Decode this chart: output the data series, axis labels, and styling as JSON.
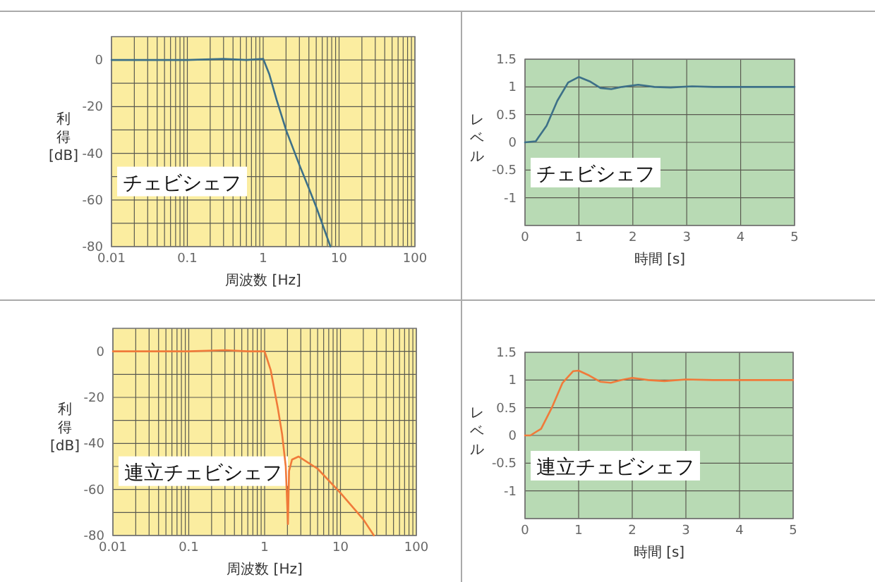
{
  "chart_data": [
    {
      "type": "line",
      "xlabel": "周波数 [Hz]",
      "ylabel": "利得 [dB]",
      "annotations": [
        "チェビシェフ"
      ],
      "log": "x",
      "grid": true,
      "color": "#3d7088",
      "x": [
        0.01,
        0.1,
        0.3,
        0.6,
        1,
        1.2,
        1.5,
        2,
        3,
        4,
        5,
        7.7
      ],
      "values": [
        0,
        0,
        0.5,
        0,
        0.5,
        -6,
        -17,
        -30,
        -45,
        -55,
        -63,
        -80
      ],
      "xlim": [
        0.01,
        100
      ],
      "ylim": [
        -80,
        10
      ],
      "xticks": [
        {
          "value": 0.01,
          "label": "0.01"
        },
        {
          "value": 0.02,
          "label": null
        },
        {
          "value": 0.03,
          "label": null
        },
        {
          "value": 0.04,
          "label": null
        },
        {
          "value": 0.05,
          "label": null
        },
        {
          "value": 0.06,
          "label": null
        },
        {
          "value": 0.07,
          "label": null
        },
        {
          "value": 0.08,
          "label": null
        },
        {
          "value": 0.09,
          "label": null
        },
        {
          "value": 0.1,
          "label": "0.1"
        },
        {
          "value": 0.2,
          "label": null
        },
        {
          "value": 0.3,
          "label": null
        },
        {
          "value": 0.4,
          "label": null
        },
        {
          "value": 0.5,
          "label": null
        },
        {
          "value": 0.6,
          "label": null
        },
        {
          "value": 0.7,
          "label": null
        },
        {
          "value": 0.8,
          "label": null
        },
        {
          "value": 0.9,
          "label": null
        },
        1,
        {
          "value": 2,
          "label": null
        },
        {
          "value": 3,
          "label": null
        },
        {
          "value": 4,
          "label": null
        },
        {
          "value": 5,
          "label": null
        },
        {
          "value": 6,
          "label": null
        },
        {
          "value": 7,
          "label": null
        },
        {
          "value": 8,
          "label": null
        },
        {
          "value": 9,
          "label": null
        },
        10,
        {
          "value": 20,
          "label": null
        },
        {
          "value": 30,
          "label": null
        },
        {
          "value": 40,
          "label": null
        },
        {
          "value": 50,
          "label": null
        },
        {
          "value": 60,
          "label": null
        },
        {
          "value": 70,
          "label": null
        },
        {
          "value": 80,
          "label": null
        },
        {
          "value": 90,
          "label": null
        },
        100
      ],
      "yticks": [
        -80,
        {
          "value": -70,
          "label": null
        },
        -60,
        {
          "value": -50,
          "label": null
        },
        -40,
        {
          "value": -30,
          "label": null
        },
        -20,
        {
          "value": -10,
          "label": null
        },
        0
      ]
    },
    {
      "type": "line",
      "xlabel": "時間 [s]",
      "ylabel": "レベル",
      "annotations": [
        "チェビシェフ"
      ],
      "grid": true,
      "color": "#3d7088",
      "x": [
        0,
        0.2,
        0.4,
        0.6,
        0.8,
        1,
        1.2,
        1.4,
        1.6,
        1.8,
        2.1,
        2.4,
        2.7,
        3.1,
        3.5,
        5
      ],
      "values": [
        0,
        0.02,
        0.3,
        0.75,
        1.08,
        1.18,
        1.1,
        0.98,
        0.96,
        1,
        1.04,
        1,
        0.99,
        1.01,
        1,
        1
      ],
      "xlim": [
        0,
        5
      ],
      "ylim": [
        -1.5,
        1.5
      ],
      "xticks": [
        0,
        1,
        2,
        3,
        4,
        5
      ],
      "yticks": [
        {
          "value": -1.5,
          "label": null
        },
        -1,
        -0.5,
        0,
        0.5,
        1,
        1.5
      ]
    },
    {
      "type": "line",
      "xlabel": "周波数 [Hz]",
      "ylabel": "利得 [dB]",
      "annotations": [
        "連立チェビシェフ"
      ],
      "log": "x",
      "grid": true,
      "color": "#f07a3a",
      "x": [
        0.01,
        0.1,
        0.3,
        0.6,
        1,
        1.2,
        1.5,
        1.7,
        1.9,
        2.03,
        2.1,
        2.3,
        2.8,
        5,
        10,
        20,
        27.6
      ],
      "values": [
        0,
        0,
        0.5,
        0,
        0,
        -8,
        -25,
        -36,
        -50,
        -75,
        -52,
        -47,
        -45.7,
        -51,
        -61.5,
        -73,
        -80
      ],
      "xlim": [
        0.01,
        100
      ],
      "ylim": [
        -80,
        10
      ],
      "xticks": [
        {
          "value": 0.01,
          "label": "0.01"
        },
        {
          "value": 0.02,
          "label": null
        },
        {
          "value": 0.03,
          "label": null
        },
        {
          "value": 0.04,
          "label": null
        },
        {
          "value": 0.05,
          "label": null
        },
        {
          "value": 0.06,
          "label": null
        },
        {
          "value": 0.07,
          "label": null
        },
        {
          "value": 0.08,
          "label": null
        },
        {
          "value": 0.09,
          "label": null
        },
        {
          "value": 0.1,
          "label": "0.1"
        },
        {
          "value": 0.2,
          "label": null
        },
        {
          "value": 0.3,
          "label": null
        },
        {
          "value": 0.4,
          "label": null
        },
        {
          "value": 0.5,
          "label": null
        },
        {
          "value": 0.6,
          "label": null
        },
        {
          "value": 0.7,
          "label": null
        },
        {
          "value": 0.8,
          "label": null
        },
        {
          "value": 0.9,
          "label": null
        },
        1,
        {
          "value": 2,
          "label": null
        },
        {
          "value": 3,
          "label": null
        },
        {
          "value": 4,
          "label": null
        },
        {
          "value": 5,
          "label": null
        },
        {
          "value": 6,
          "label": null
        },
        {
          "value": 7,
          "label": null
        },
        {
          "value": 8,
          "label": null
        },
        {
          "value": 9,
          "label": null
        },
        10,
        {
          "value": 20,
          "label": null
        },
        {
          "value": 30,
          "label": null
        },
        {
          "value": 40,
          "label": null
        },
        {
          "value": 50,
          "label": null
        },
        {
          "value": 60,
          "label": null
        },
        {
          "value": 70,
          "label": null
        },
        {
          "value": 80,
          "label": null
        },
        {
          "value": 90,
          "label": null
        },
        100
      ],
      "yticks": [
        -80,
        {
          "value": -70,
          "label": null
        },
        -60,
        {
          "value": -50,
          "label": null
        },
        -40,
        {
          "value": -30,
          "label": null
        },
        -20,
        {
          "value": -10,
          "label": null
        },
        0
      ]
    },
    {
      "type": "line",
      "xlabel": "時間 [s]",
      "ylabel": "レベル",
      "annotations": [
        "連立チェビシェフ"
      ],
      "grid": true,
      "color": "#f07a3a",
      "x": [
        0,
        0.1,
        0.3,
        0.5,
        0.7,
        0.9,
        1,
        1.2,
        1.4,
        1.6,
        1.8,
        2,
        2.3,
        2.6,
        3,
        3.5,
        5
      ],
      "values": [
        0,
        0,
        0.12,
        0.5,
        0.95,
        1.16,
        1.17,
        1.08,
        0.97,
        0.95,
        1,
        1.04,
        1,
        0.98,
        1.01,
        1,
        1
      ],
      "xlim": [
        0,
        5
      ],
      "ylim": [
        -1.5,
        1.5
      ],
      "xticks": [
        0,
        1,
        2,
        3,
        4,
        5
      ],
      "yticks": [
        {
          "value": -1.5,
          "label": null
        },
        -1,
        -0.5,
        0,
        0.5,
        1,
        1.5
      ]
    }
  ]
}
